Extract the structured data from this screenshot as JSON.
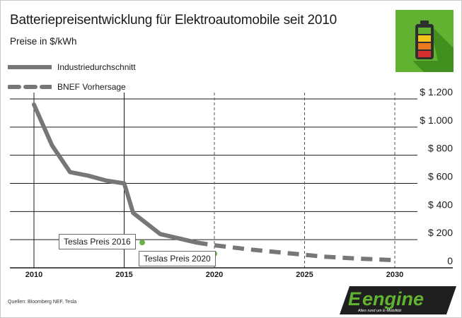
{
  "header": {
    "title": "Batteriepreisentwicklung für Elektroautomobile seit 2010",
    "subtitle": "Preise in $/kWh"
  },
  "source": "Quellen: Bloomberg NEF, Tesla",
  "brand": {
    "name": "engine",
    "tagline": "Alles rund um E-Mobilität"
  },
  "colors": {
    "line": "#777777",
    "point": "#6ab04c",
    "logo_bg": "#62b232",
    "dark": "#333333"
  },
  "chart_data": {
    "type": "line",
    "title": "Batteriepreisentwicklung für Elektroautomobile seit 2010",
    "subtitle": "Preise in $/kWh",
    "x_ticks": [
      "2010",
      "2015",
      "2020",
      "2025",
      "2030"
    ],
    "y_ticks": [
      {
        "value": 0,
        "label": "0"
      },
      {
        "value": 200,
        "label": "$ 200"
      },
      {
        "value": 400,
        "label": "$ 400"
      },
      {
        "value": 600,
        "label": "$ 600"
      },
      {
        "value": 800,
        "label": "$ 800"
      },
      {
        "value": 1000,
        "label": "$ 1.000"
      },
      {
        "value": 1200,
        "label": "$ 1.200"
      }
    ],
    "xlim": [
      2010,
      2030
    ],
    "ylim": [
      0,
      1200
    ],
    "legend_position": "top-left",
    "series": [
      {
        "name": "Industriedurchschnitt",
        "style": "solid",
        "x": [
          2010,
          2011,
          2012,
          2013,
          2014,
          2015,
          2015.5,
          2017,
          2018,
          2019
        ],
        "values": [
          1160,
          870,
          680,
          655,
          620,
          600,
          390,
          240,
          210,
          180
        ]
      },
      {
        "name": "BNEF Vorhersage",
        "style": "dashed",
        "x": [
          2019,
          2020,
          2022,
          2024,
          2026,
          2028,
          2030
        ],
        "values": [
          180,
          160,
          130,
          105,
          80,
          65,
          55
        ]
      }
    ],
    "annotations": [
      {
        "label": "Teslas Preis 2016",
        "x": 2016,
        "value": 180
      },
      {
        "label": "Teslas Preis 2020",
        "x": 2020,
        "value": 100
      }
    ]
  }
}
